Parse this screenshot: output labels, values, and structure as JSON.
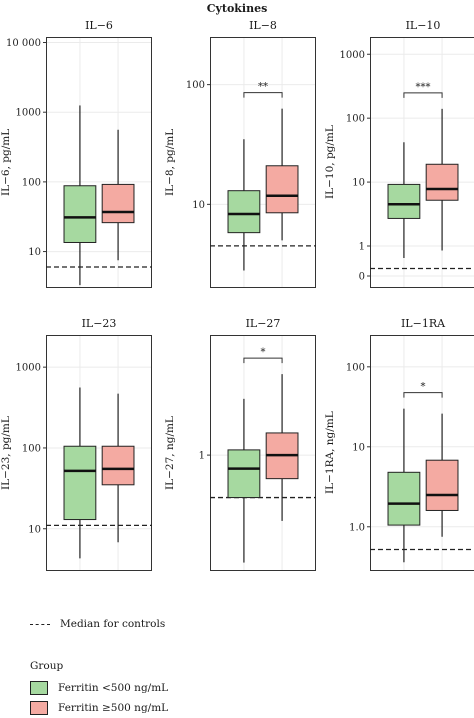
{
  "figure": {
    "title": "Cytokines",
    "legend_controls_label": "Median for controls",
    "legend_group_title": "Group",
    "legend_groups": [
      {
        "label": "Ferritin <500 ng/mL",
        "color": "#a6d9a0"
      },
      {
        "label": "Ferritin ≥500 ng/mL",
        "color": "#f4aaa2"
      }
    ]
  },
  "chart_data": [
    {
      "type": "box",
      "title": "IL−6",
      "ylabel": "IL−6, pg/mL",
      "scale": "log",
      "ylim": [
        3,
        12000
      ],
      "ticks": [
        {
          "v": 10,
          "label": "10"
        },
        {
          "v": 100,
          "label": "100"
        },
        {
          "v": 1000,
          "label": "1000"
        },
        {
          "v": 10000,
          "label": "10 000"
        }
      ],
      "control_median": 6,
      "boxes": [
        {
          "group": "Ferritin <500 ng/mL",
          "whisker_low": 3.3,
          "q1": 13.5,
          "median": 31,
          "q3": 88,
          "whisker_high": 1250
        },
        {
          "group": "Ferritin ≥500 ng/mL",
          "whisker_low": 7.5,
          "q1": 26,
          "median": 37,
          "q3": 92,
          "whisker_high": 560
        }
      ],
      "significance": ""
    },
    {
      "type": "box",
      "title": "IL−8",
      "ylabel": "IL−8, pg/mL",
      "scale": "log",
      "ylim": [
        2,
        250
      ],
      "ticks": [
        {
          "v": 10,
          "label": "10"
        },
        {
          "v": 100,
          "label": "100"
        }
      ],
      "control_median": 4.5,
      "boxes": [
        {
          "group": "Ferritin <500 ng/mL",
          "whisker_low": 2.8,
          "q1": 5.8,
          "median": 8.3,
          "q3": 13,
          "whisker_high": 35
        },
        {
          "group": "Ferritin ≥500 ng/mL",
          "whisker_low": 5,
          "q1": 8.5,
          "median": 11.8,
          "q3": 21,
          "whisker_high": 63
        }
      ],
      "significance": "**"
    },
    {
      "type": "box",
      "title": "IL−10",
      "ylabel": "IL−10, pg/mL",
      "scale": "log0",
      "ylim": [
        0,
        1500
      ],
      "ticks": [
        {
          "v": 0,
          "label": "0"
        },
        {
          "v": 1,
          "label": "1"
        },
        {
          "v": 10,
          "label": "10"
        },
        {
          "v": 100,
          "label": "100"
        },
        {
          "v": 1000,
          "label": "1000"
        }
      ],
      "control_median": 0.25,
      "boxes": [
        {
          "group": "Ferritin <500 ng/mL",
          "whisker_low": 0.6,
          "q1": 2.7,
          "median": 4.5,
          "q3": 9.2,
          "whisker_high": 42
        },
        {
          "group": "Ferritin ≥500 ng/mL",
          "whisker_low": 0.85,
          "q1": 5.2,
          "median": 7.8,
          "q3": 19,
          "whisker_high": 140
        }
      ],
      "significance": "***"
    },
    {
      "type": "box",
      "title": "IL−23",
      "ylabel": "IL−23, pg/mL",
      "scale": "log",
      "ylim": [
        3,
        2500
      ],
      "ticks": [
        {
          "v": 10,
          "label": "10"
        },
        {
          "v": 100,
          "label": "100"
        },
        {
          "v": 1000,
          "label": "1000"
        }
      ],
      "control_median": 11,
      "boxes": [
        {
          "group": "Ferritin <500 ng/mL",
          "whisker_low": 4.3,
          "q1": 13,
          "median": 52,
          "q3": 105,
          "whisker_high": 560
        },
        {
          "group": "Ferritin ≥500 ng/mL",
          "whisker_low": 6.8,
          "q1": 35,
          "median": 55,
          "q3": 105,
          "whisker_high": 470
        }
      ],
      "significance": ""
    },
    {
      "type": "box",
      "title": "IL−27",
      "ylabel": "IL−27, ng/mL",
      "scale": "log",
      "ylim": [
        0.12,
        9
      ],
      "ticks": [
        {
          "v": 1,
          "label": "1"
        }
      ],
      "control_median": 0.46,
      "boxes": [
        {
          "group": "Ferritin <500 ng/mL",
          "whisker_low": 0.14,
          "q1": 0.46,
          "median": 0.78,
          "q3": 1.1,
          "whisker_high": 2.8
        },
        {
          "group": "Ferritin ≥500 ng/mL",
          "whisker_low": 0.3,
          "q1": 0.65,
          "median": 1.0,
          "q3": 1.5,
          "whisker_high": 4.4
        }
      ],
      "significance": "*"
    },
    {
      "type": "box",
      "title": "IL−1RA",
      "ylabel": "IL−1RA, ng/mL",
      "scale": "log",
      "ylim": [
        0.28,
        250
      ],
      "ticks": [
        {
          "v": 1,
          "label": "1.0"
        },
        {
          "v": 10,
          "label": "10"
        },
        {
          "v": 100,
          "label": "100"
        }
      ],
      "control_median": 0.52,
      "boxes": [
        {
          "group": "Ferritin <500 ng/mL",
          "whisker_low": 0.36,
          "q1": 1.05,
          "median": 1.95,
          "q3": 4.8,
          "whisker_high": 30
        },
        {
          "group": "Ferritin ≥500 ng/mL",
          "whisker_low": 0.75,
          "q1": 1.6,
          "median": 2.5,
          "q3": 6.8,
          "whisker_high": 26
        }
      ],
      "significance": "*"
    }
  ]
}
